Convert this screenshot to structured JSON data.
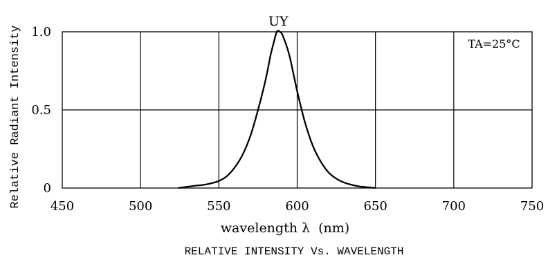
{
  "chart_data": {
    "type": "line",
    "title": "RELATIVE INTENSITY Vs. WAVELENGTH",
    "xlabel": "wavelength λ  (nm)",
    "ylabel": "Relative Radiant Intensity",
    "xlim": [
      450,
      750
    ],
    "ylim": [
      0,
      1.0
    ],
    "x_ticks": [
      450,
      500,
      550,
      600,
      650,
      700,
      750
    ],
    "x_tick_labels": [
      "450",
      "500",
      "550",
      "600",
      "650",
      "700",
      "750"
    ],
    "y_ticks": [
      0,
      0.5,
      1.0
    ],
    "y_tick_labels": [
      "0",
      "0.5",
      "1.0"
    ],
    "grid": true,
    "annotation": "TA=25°C",
    "series": [
      {
        "name": "UY",
        "x": [
          524,
          530,
          535,
          540,
          545,
          550,
          555,
          560,
          565,
          570,
          575,
          580,
          583,
          585,
          587,
          589,
          591,
          595,
          600,
          605,
          610,
          615,
          620,
          625,
          630,
          635,
          640,
          645,
          650
        ],
        "y": [
          0.0,
          0.008,
          0.015,
          0.02,
          0.03,
          0.045,
          0.075,
          0.13,
          0.21,
          0.33,
          0.5,
          0.7,
          0.85,
          0.93,
          1.0,
          1.0,
          0.97,
          0.85,
          0.62,
          0.42,
          0.27,
          0.17,
          0.1,
          0.06,
          0.035,
          0.02,
          0.01,
          0.005,
          0.0
        ]
      }
    ]
  }
}
